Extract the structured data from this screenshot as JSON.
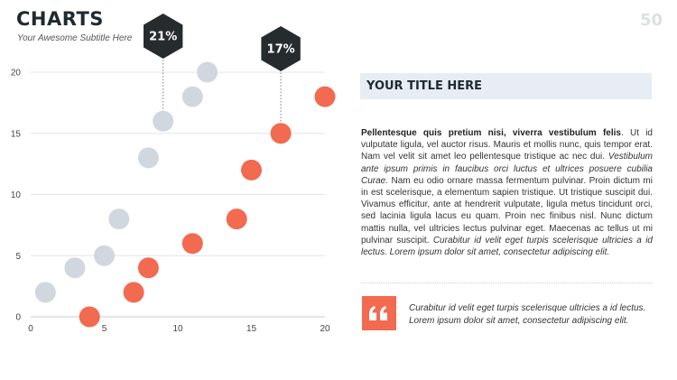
{
  "header": {
    "title": "CHARTS",
    "subtitle": "Your Awesome Subtitle Here",
    "page_number": "50"
  },
  "colors": {
    "series_gray": "#d1d7df",
    "series_orange": "#f26a4f",
    "callout": "#262b2e",
    "grid": "#e3e5e8",
    "axis": "#c7cbd0"
  },
  "chart_data": {
    "type": "scatter",
    "xlim": [
      0,
      20
    ],
    "ylim": [
      0,
      20
    ],
    "x_ticks": [
      0,
      5,
      10,
      15,
      20
    ],
    "y_ticks": [
      0,
      5,
      10,
      15,
      20
    ],
    "grid": true,
    "series": [
      {
        "points": [
          [
            1,
            2
          ],
          [
            3,
            4
          ],
          [
            5,
            5
          ],
          [
            6,
            8
          ],
          [
            8,
            13
          ],
          [
            9,
            16
          ],
          [
            11,
            18
          ],
          [
            12,
            20
          ]
        ]
      },
      {
        "points": [
          [
            4,
            0
          ],
          [
            7,
            2
          ],
          [
            8,
            4
          ],
          [
            11,
            6
          ],
          [
            14,
            8
          ],
          [
            15,
            12
          ],
          [
            17,
            15
          ],
          [
            20,
            18
          ]
        ]
      }
    ],
    "callouts": [
      {
        "label": "21%",
        "x": 9,
        "y": 16
      },
      {
        "label": "17%",
        "x": 17,
        "y": 15
      }
    ]
  },
  "panel": {
    "title": "YOUR TITLE HERE",
    "body_bold": "Pellentesque quis pretium nisi, viverra vestibulum felis",
    "body_1": ". Ut id vulputate ligula, vel auctor risus. Mauris et mollis nunc, quis tempor erat. Nam vel velit sit amet leo pellentesque tristique ac nec dui. ",
    "body_italic_1": "Vestibulum ante ipsum primis in faucibus orci luctus et ultrices posuere cubilia Curae.",
    "body_2": " Nam eu odio ornare massa fermentum pulvinar. Proin dictum mi in est scelerisque, a elementum sapien tristique. Ut tristique suscipit dui. Vivamus efficitur, ante at hendrerit vulputate, ligula metus tincidunt orci, sed lacinia ligula lacus eu quam.  Proin nec finibus nisl. Nunc dictum mattis nulla, vel ultricies lectus pulvinar eget. Maecenas ac tellus ut mi pulvinar suscipit. ",
    "body_italic_2": "Curabitur id velit eget turpis scelerisque ultricies a id lectus. Lorem ipsum dolor sit amet, consectetur adipiscing elit.",
    "quote_icon": "quote-icon",
    "quote": "Curabitur id velit eget turpis scelerisque ultricies a id lectus. Lorem ipsum dolor sit amet, consectetur adipiscing elit."
  }
}
